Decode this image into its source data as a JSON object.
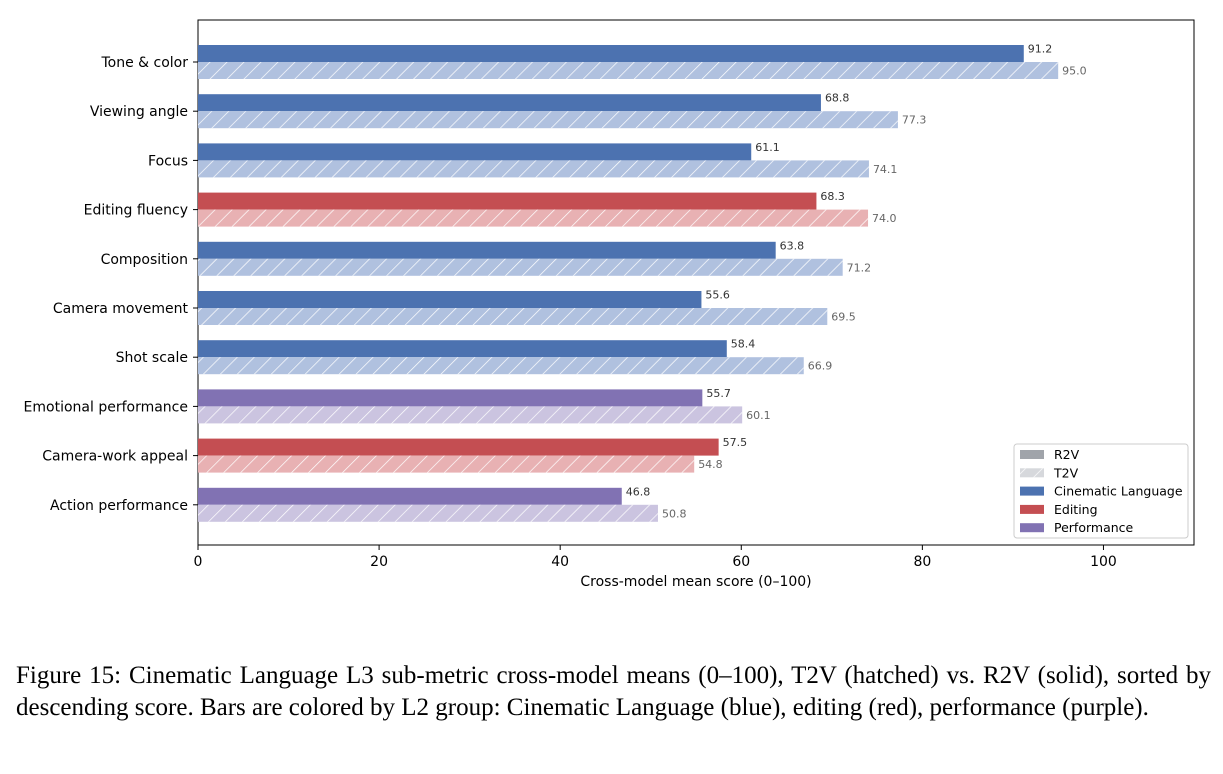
{
  "figure_caption": "Figure 15: Cinematic Language L3 sub-metric cross-model means (0–100), T2V (hatched) vs. R2V (solid), sorted by descending score.  Bars are colored by L2 group: Cinematic Language (blue), editing (red), performance (purple).",
  "chart_data": {
    "type": "bar",
    "orientation": "horizontal",
    "xlabel": "Cross-model mean score (0–100)",
    "ylabel": "",
    "xlim": [
      0,
      110
    ],
    "xticks": [
      0,
      20,
      40,
      60,
      80,
      100
    ],
    "grid": false,
    "legend_position": "lower-right",
    "categories": [
      "Tone & color",
      "Viewing angle",
      "Focus",
      "Editing fluency",
      "Composition",
      "Camera movement",
      "Shot scale",
      "Emotional performance",
      "Camera-work appeal",
      "Action performance"
    ],
    "groups": [
      "Cinematic Language",
      "Cinematic Language",
      "Cinematic Language",
      "Editing",
      "Cinematic Language",
      "Cinematic Language",
      "Cinematic Language",
      "Performance",
      "Editing",
      "Performance"
    ],
    "series": [
      {
        "name": "R2V",
        "style": "solid",
        "values": [
          91.2,
          68.8,
          61.1,
          68.3,
          63.8,
          55.6,
          58.4,
          55.7,
          57.5,
          46.8
        ],
        "value_labels": [
          "91.2",
          "68.8",
          "61.1",
          "68.3",
          "63.8",
          "55.6",
          "58.4",
          "55.7",
          "57.5",
          "46.8"
        ]
      },
      {
        "name": "T2V",
        "style": "hatched",
        "values": [
          95.0,
          77.3,
          74.1,
          74.0,
          71.2,
          69.5,
          66.9,
          60.1,
          54.8,
          50.8
        ],
        "value_labels": [
          "95.0",
          "77.3",
          "74.1",
          "74.0",
          "71.2",
          "69.5",
          "66.9",
          "60.1",
          "54.8",
          "50.8"
        ]
      }
    ],
    "group_colors": {
      "Cinematic Language": {
        "solid": "#4c72b0",
        "light": "#b0c1df"
      },
      "Editing": {
        "solid": "#c44e52",
        "light": "#e8b1b3"
      },
      "Performance": {
        "solid": "#8172b3",
        "light": "#cbc4e0"
      }
    },
    "legend": [
      {
        "label": "R2V",
        "kind": "solid",
        "color": "#a0a4aa"
      },
      {
        "label": "T2V",
        "kind": "hatched",
        "color": "#d6d8dc"
      },
      {
        "label": "Cinematic Language",
        "kind": "solid",
        "color": "#4c72b0"
      },
      {
        "label": "Editing",
        "kind": "solid",
        "color": "#c44e52"
      },
      {
        "label": "Performance",
        "kind": "solid",
        "color": "#8172b3"
      }
    ]
  }
}
